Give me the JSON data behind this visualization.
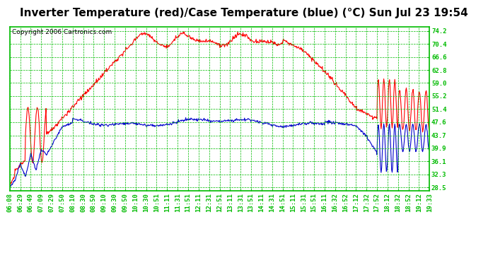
{
  "title": "Inverter Temperature (red)/Case Temperature (blue) (°C) Sun Jul 23 19:54",
  "copyright": "Copyright 2006 Cartronics.com",
  "bg_color": "#ffffff",
  "plot_bg_color": "#ffffff",
  "grid_color": "#00bb00",
  "line_color_red": "#ff0000",
  "line_color_blue": "#0000cc",
  "ytick_labels": [
    "28.5",
    "32.3",
    "36.1",
    "39.9",
    "43.7",
    "47.6",
    "51.4",
    "55.2",
    "59.0",
    "62.8",
    "66.6",
    "70.4",
    "74.2"
  ],
  "ytick_values": [
    28.5,
    32.3,
    36.1,
    39.9,
    43.7,
    47.6,
    51.4,
    55.2,
    59.0,
    62.8,
    66.6,
    70.4,
    74.2
  ],
  "ymin": 27.5,
  "ymax": 75.5,
  "xtick_labels": [
    "06:08",
    "06:29",
    "06:49",
    "07:09",
    "07:29",
    "07:50",
    "08:10",
    "08:30",
    "08:50",
    "09:10",
    "09:30",
    "09:50",
    "10:10",
    "10:30",
    "10:51",
    "11:11",
    "11:31",
    "11:51",
    "12:11",
    "12:31",
    "12:51",
    "13:11",
    "13:31",
    "13:51",
    "14:11",
    "14:31",
    "14:51",
    "15:11",
    "15:31",
    "15:51",
    "16:11",
    "16:32",
    "16:52",
    "17:12",
    "17:32",
    "17:52",
    "18:12",
    "18:32",
    "18:52",
    "19:12",
    "19:33"
  ],
  "title_fontsize": 11,
  "tick_fontsize": 6.5,
  "copyright_fontsize": 6.5
}
